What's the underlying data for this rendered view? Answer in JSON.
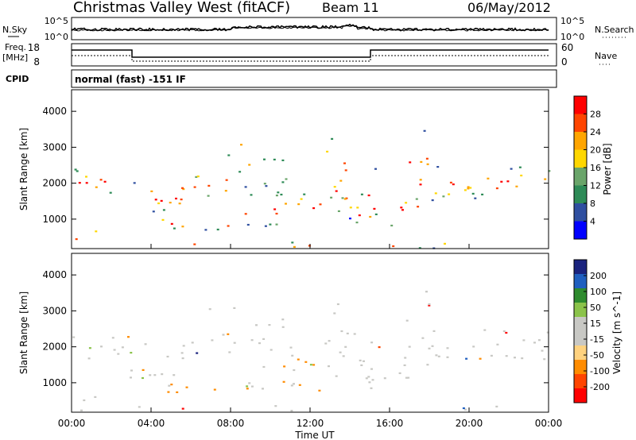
{
  "header": {
    "station": "Christmas Valley West (fitACF)",
    "beam": "Beam 11",
    "date": "06/May/2012"
  },
  "top_panels": {
    "nsky_label": "N.Sky",
    "nsky_ticks": [
      "10^5",
      "10^0"
    ],
    "nsearch_label": "N.Search",
    "nsearch_ticks": [
      "10^5",
      "10^0"
    ],
    "freq_label_1": "Freq.",
    "freq_label_2": "[MHz]",
    "freq_ticks": [
      "18",
      "8"
    ],
    "nave_label": "Nave",
    "nave_ticks": [
      "60",
      "0"
    ],
    "cpid_label": "CPID",
    "cpid_value": "normal (fast) -151 IF"
  },
  "colors": {
    "power_scale": [
      "#0000ff",
      "#2f4fa0",
      "#2e8b57",
      "#6aa56a",
      "#ffd700",
      "#ffa500",
      "#ff4500",
      "#ff0000"
    ],
    "velocity_scale": [
      "#ff0000",
      "#ff4500",
      "#ff8c00",
      "#ffd27f",
      "#c8c8c4",
      "#c8c8c4",
      "#8bc34a",
      "#2e8b2e",
      "#1f5fbf",
      "#1a237e"
    ]
  },
  "chart_data": [
    {
      "type": "heatmap",
      "name": "power",
      "xlabel": "",
      "ylabel": "Slant Range [km]",
      "y_ticks": [
        "1000",
        "2000",
        "3000",
        "4000"
      ],
      "x_ticks": [
        "00:00",
        "04:00",
        "08:00",
        "12:00",
        "16:00",
        "20:00",
        "00:00"
      ],
      "colorbar_label": "Power [dB]",
      "colorbar_ticks": [
        "4",
        "8",
        "12",
        "16",
        "20",
        "24",
        "28"
      ],
      "grid": false
    },
    {
      "type": "heatmap",
      "name": "velocity",
      "xlabel": "Time UT",
      "ylabel": "Slant Range [km]",
      "y_ticks": [
        "1000",
        "2000",
        "3000",
        "4000"
      ],
      "x_ticks": [
        "00:00",
        "04:00",
        "08:00",
        "12:00",
        "16:00",
        "20:00",
        "00:00"
      ],
      "colorbar_label": "Velocity [m s^-1]",
      "colorbar_ticks": [
        "200",
        "100",
        "50",
        "15",
        "-15",
        "-50",
        "-100",
        "-200"
      ],
      "grid": false
    }
  ]
}
